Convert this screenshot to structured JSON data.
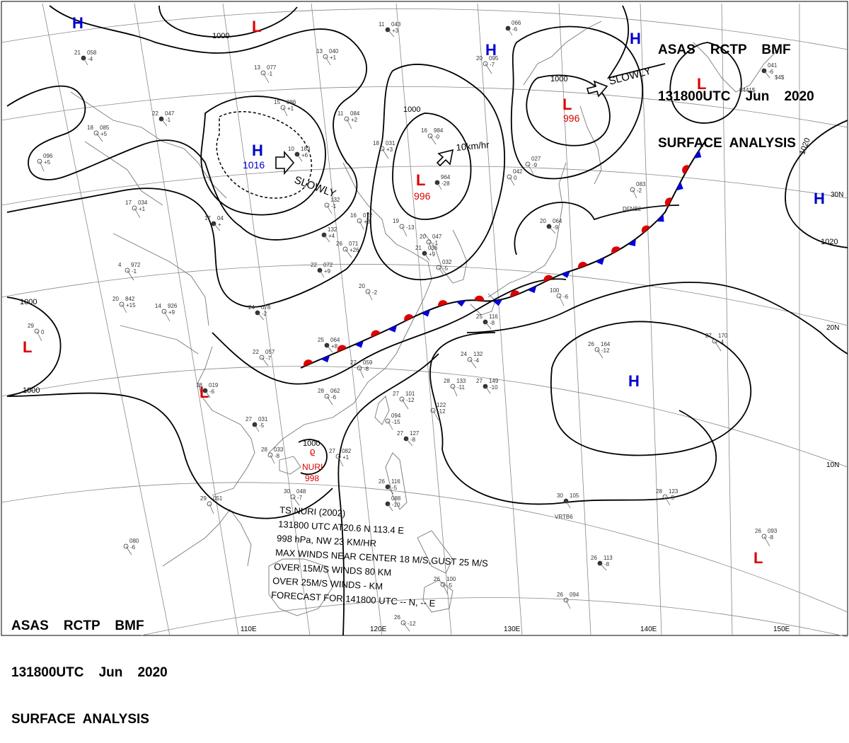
{
  "header_top": {
    "line1": "ASAS    RCTP    BMF",
    "line2": "131800UTC    Jun    2020",
    "line3": "SURFACE  ANALYSIS"
  },
  "header_bottom": {
    "line1": "ASAS    RCTP    BMF",
    "line2": "131800UTC    Jun    2020",
    "line3": "SURFACE  ANALYSIS"
  },
  "longitude_labels": [
    "110E",
    "120E",
    "130E",
    "140E",
    "150E"
  ],
  "latitude_labels": [
    "30N",
    "20N",
    "10N"
  ],
  "isobar_labels": [
    "1000",
    "1000",
    "1000",
    "1000",
    "1000",
    "1000",
    "1020",
    "1020",
    "1000"
  ],
  "pressure_centers": [
    {
      "type": "H",
      "value": "",
      "color": "#0000cc"
    },
    {
      "type": "L",
      "value": "",
      "color": "#dd0000"
    },
    {
      "type": "H",
      "value": "1016",
      "color": "#0000cc"
    },
    {
      "type": "L",
      "value": "996",
      "color": "#dd0000"
    },
    {
      "type": "H",
      "value": "",
      "color": "#0000cc"
    },
    {
      "type": "H",
      "value": "",
      "color": "#0000cc"
    },
    {
      "type": "L",
      "value": "996",
      "color": "#dd0000"
    },
    {
      "type": "L",
      "value": "",
      "color": "#dd0000"
    },
    {
      "type": "H",
      "value": "",
      "color": "#0000cc"
    },
    {
      "type": "L",
      "value": "",
      "color": "#dd0000"
    },
    {
      "type": "L",
      "value": "",
      "color": "#dd0000"
    },
    {
      "type": "H",
      "value": "",
      "color": "#0000cc"
    },
    {
      "type": "L",
      "value": "",
      "color": "#dd0000"
    }
  ],
  "motion_labels": [
    "SLOWLY",
    "10km/hr",
    "SLOWLY"
  ],
  "storm": {
    "name": "NURI",
    "pressure": "998",
    "isobar": "1000"
  },
  "storm_bulletin": [
    "TS  NURI  (2002)",
    "131800 UTC  AT20.6 N  113.4 E",
    "998 hPa, NW  23 KM/HR",
    "MAX WINDS NEAR CENTER 18 M/S,GUST 25 M/S",
    "OVER 15M/S WINDS  80 KM",
    "OVER 25M/S WINDS  - KM",
    "FORECAST FOR 141800 UTC -- N, -- E"
  ],
  "stations": [
    {
      "t": "21",
      "p": "058",
      "d": "-4"
    },
    {
      "t": "13",
      "p": "040",
      "d": "+1"
    },
    {
      "t": "13",
      "p": "077",
      "d": "-1"
    },
    {
      "t": "11",
      "p": "043",
      "d": "+3"
    },
    {
      "t": "15",
      "p": "086",
      "d": "+1"
    },
    {
      "t": "11",
      "p": "084",
      "d": "+2"
    },
    {
      "t": "22",
      "p": "047",
      "d": "-1"
    },
    {
      "t": "18",
      "p": "085",
      "d": "+5"
    },
    {
      "t": "",
      "p": "096",
      "d": "+5"
    },
    {
      "t": "10",
      "p": "183",
      "d": "+6"
    },
    {
      "t": "16",
      "p": "984",
      "d": "-0"
    },
    {
      "t": "18",
      "p": "031",
      "d": "+3"
    },
    {
      "t": "",
      "p": "964",
      "d": "-28"
    },
    {
      "t": "",
      "p": "132",
      "d": "-1"
    },
    {
      "t": "17",
      "p": "034",
      "d": "+1"
    },
    {
      "t": "17",
      "p": "04",
      "d": "+"
    },
    {
      "t": "16",
      "p": "072",
      "d": "+3"
    },
    {
      "t": "19",
      "p": "",
      "d": "-13"
    },
    {
      "t": "",
      "p": "132",
      "d": "+4"
    },
    {
      "t": "26",
      "p": "071",
      "d": "+26"
    },
    {
      "t": "20",
      "p": "047",
      "d": "-1"
    },
    {
      "t": "21",
      "p": "036",
      "d": "+9"
    },
    {
      "t": "",
      "p": "032",
      "d": "-5"
    },
    {
      "t": "4",
      "p": "972",
      "d": "-1"
    },
    {
      "t": "22",
      "p": "072",
      "d": "+9"
    },
    {
      "t": "20",
      "p": "842",
      "d": "+15"
    },
    {
      "t": "14",
      "p": "926",
      "d": "+9"
    },
    {
      "t": "24",
      "p": "078",
      "d": "-2"
    },
    {
      "t": "20",
      "p": "",
      "d": "-2"
    },
    {
      "t": "29",
      "p": "",
      "d": "0"
    },
    {
      "t": "25",
      "p": "064",
      "d": "+8"
    },
    {
      "t": "22",
      "p": "057",
      "d": "-7"
    },
    {
      "t": "27",
      "p": "059",
      "d": "-8"
    },
    {
      "t": "18",
      "p": "019",
      "d": "-6"
    },
    {
      "t": "28",
      "p": "062",
      "d": "-6"
    },
    {
      "t": "27",
      "p": "101",
      "d": "-12"
    },
    {
      "t": "27",
      "p": "031",
      "d": "-5"
    },
    {
      "t": "",
      "p": "094",
      "d": "-15"
    },
    {
      "t": "",
      "p": "122",
      "d": "-12"
    },
    {
      "t": "27",
      "p": "127",
      "d": "-8"
    },
    {
      "t": "28",
      "p": "033",
      "d": "-8"
    },
    {
      "t": "27",
      "p": "082",
      "d": "+1"
    },
    {
      "t": "26",
      "p": "116",
      "d": "-5"
    },
    {
      "t": "30",
      "p": "048",
      "d": "-7"
    },
    {
      "t": "29",
      "p": "051",
      "d": ""
    },
    {
      "t": "",
      "p": "088",
      "d": "-10"
    },
    {
      "t": "",
      "p": "080",
      "d": "-6"
    },
    {
      "t": "20",
      "p": "095",
      "d": "-7"
    },
    {
      "t": "",
      "p": "066",
      "d": "-6"
    },
    {
      "t": "",
      "p": "042",
      "d": "0"
    },
    {
      "t": "",
      "p": "027",
      "d": "-9"
    },
    {
      "t": "20",
      "p": "064",
      "d": "-9"
    },
    {
      "t": "",
      "p": "083",
      "d": "-2"
    },
    {
      "t": "100",
      "p": "",
      "d": "-6"
    },
    {
      "t": "25",
      "p": "116",
      "d": "-8"
    },
    {
      "t": "24",
      "p": "132",
      "d": "-4"
    },
    {
      "t": "28",
      "p": "133",
      "d": "-11"
    },
    {
      "t": "27",
      "p": "149",
      "d": "-10"
    },
    {
      "t": "26",
      "p": "164",
      "d": "-12"
    },
    {
      "t": "27",
      "p": "170",
      "d": "-4"
    },
    {
      "t": "30",
      "p": "105",
      "d": ""
    },
    {
      "t": "28",
      "p": "123",
      "d": "-5"
    },
    {
      "t": "26",
      "p": "093",
      "d": "-8"
    },
    {
      "t": "26",
      "p": "113",
      "d": "-8"
    },
    {
      "t": "26",
      "p": "094",
      "d": ""
    },
    {
      "t": "26",
      "p": "100",
      "d": "-5"
    },
    {
      "t": "",
      "p": "041",
      "d": "-6"
    },
    {
      "t": "26",
      "p": "",
      "d": "-12"
    }
  ],
  "station_ids": [
    "DFNB2",
    "VRTB6",
    "$441$",
    "$4$"
  ],
  "colors": {
    "isobar": "#000000",
    "coast": "#777777",
    "grid": "#888888",
    "warm_front": "#dd0000",
    "cold_front": "#0000dd",
    "high": "#0000cc",
    "low": "#dd0000"
  }
}
